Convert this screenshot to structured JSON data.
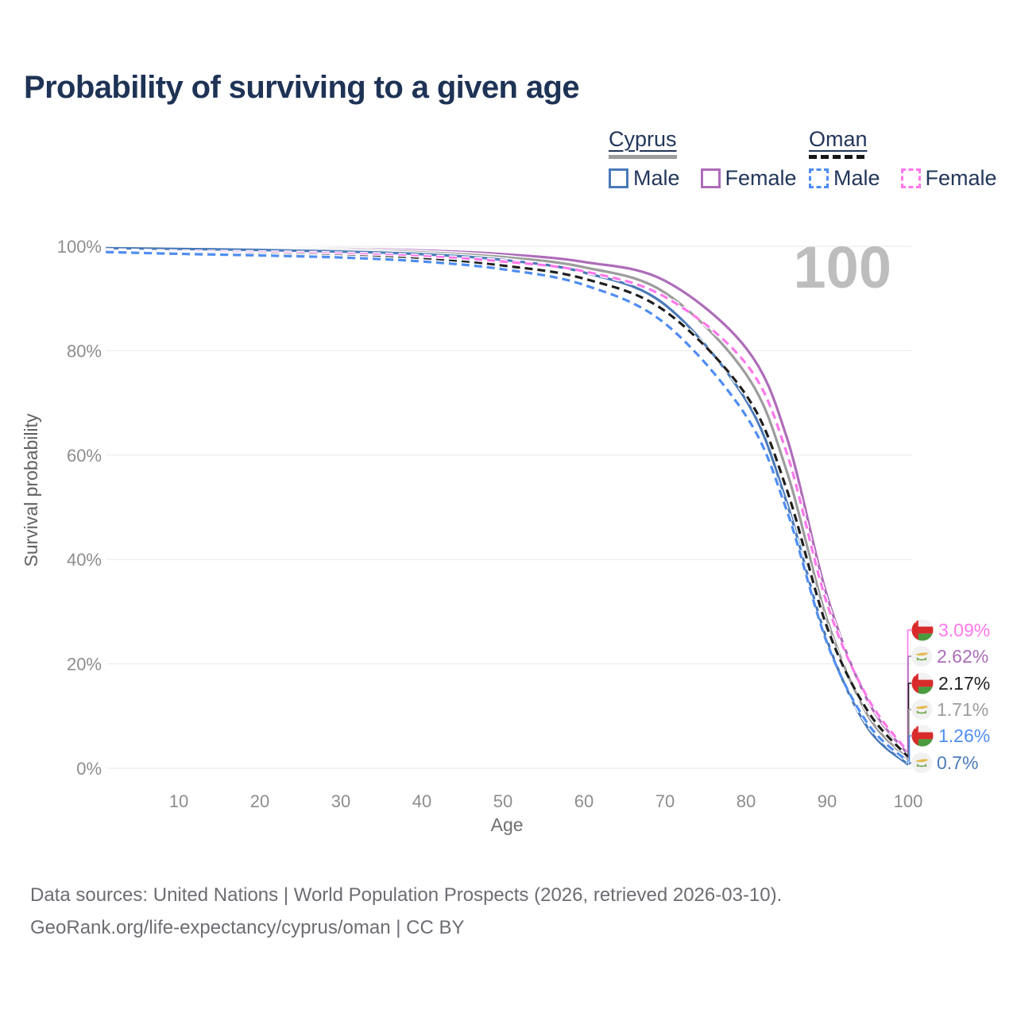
{
  "title": "Probability of surviving to a given age",
  "watermark": "100",
  "legend": {
    "groups": [
      {
        "name": "Cyprus",
        "line_style": "solid",
        "line_color": "#9c9c9c",
        "line_width": 86,
        "items": [
          {
            "label": "Male",
            "color": "#4a7ab8",
            "dash": false
          },
          {
            "label": "Female",
            "color": "#ad6cb8",
            "dash": false
          }
        ]
      },
      {
        "name": "Oman",
        "line_style": "dashed",
        "line_color": "#161616",
        "line_width": 70,
        "items": [
          {
            "label": "Male",
            "color": "#4f8df2",
            "dash": true
          },
          {
            "label": "Female",
            "color": "#ff77ec",
            "dash": true
          }
        ]
      }
    ]
  },
  "chart_data": {
    "type": "line",
    "title": "Probability of surviving to a given age",
    "xlabel": "Age",
    "ylabel": "Survival probability",
    "xlim": [
      1,
      100
    ],
    "ylim": [
      0,
      100
    ],
    "grid": "horizontal",
    "x_ticks": [
      10,
      20,
      30,
      40,
      50,
      60,
      70,
      80,
      90,
      100
    ],
    "y_ticks": [
      {
        "value": 0,
        "label": "0%"
      },
      {
        "value": 20,
        "label": "20%"
      },
      {
        "value": 40,
        "label": "40%"
      },
      {
        "value": 60,
        "label": "60%"
      },
      {
        "value": 80,
        "label": "80%"
      },
      {
        "value": 100,
        "label": "100%"
      }
    ],
    "ages": [
      1,
      10,
      20,
      30,
      40,
      50,
      60,
      70,
      80,
      85,
      90,
      95,
      100
    ],
    "series": [
      {
        "name": "Oman Female",
        "country": "Oman",
        "flag": "oman",
        "color": "#ff77ec",
        "dash": true,
        "end_label": "3.09%",
        "values": [
          99.2,
          98.95,
          98.8,
          98.55,
          98.1,
          97.1,
          95.2,
          90.3,
          77.5,
          60.5,
          31.5,
          13.5,
          3.09
        ]
      },
      {
        "name": "Cyprus Female",
        "country": "Cyprus",
        "flag": "cyprus",
        "color": "#ad6cb8",
        "dash": false,
        "end_label": "2.62%",
        "values": [
          99.8,
          99.7,
          99.6,
          99.5,
          99.2,
          98.5,
          97.0,
          93.4,
          80.5,
          63.5,
          33.0,
          13.0,
          2.62
        ]
      },
      {
        "name": "Oman Both Sexes",
        "country": "Oman",
        "flag": "oman",
        "color": "#1f1f1f",
        "dash": true,
        "end_label": "2.17%",
        "values": [
          99.05,
          98.7,
          98.5,
          98.15,
          97.55,
          96.3,
          93.8,
          87.6,
          71.5,
          53.5,
          27.0,
          11.0,
          2.17
        ]
      },
      {
        "name": "Cyprus Both Sexes",
        "country": "Cyprus",
        "flag": "cyprus",
        "color": "#9c9c9c",
        "dash": false,
        "end_label": "1.71%",
        "values": [
          99.7,
          99.6,
          99.45,
          99.25,
          98.85,
          97.95,
          96.0,
          91.1,
          75.5,
          57.0,
          28.5,
          10.2,
          1.71
        ]
      },
      {
        "name": "Oman Male",
        "country": "Oman",
        "flag": "oman",
        "color": "#4f8df2",
        "dash": true,
        "end_label": "1.26%",
        "values": [
          98.9,
          98.55,
          98.25,
          97.85,
          97.1,
          95.6,
          92.6,
          85.2,
          67.5,
          49.5,
          24.0,
          8.6,
          1.26
        ]
      },
      {
        "name": "Cyprus Male",
        "country": "Cyprus",
        "flag": "cyprus",
        "color": "#4a7ab8",
        "dash": false,
        "end_label": "0.7%",
        "values": [
          99.65,
          99.5,
          99.3,
          99.0,
          98.5,
          97.4,
          95.0,
          88.8,
          70.5,
          51.0,
          24.5,
          7.8,
          0.7
        ]
      }
    ]
  },
  "footer": {
    "line1": "Data sources: United Nations | World Population Prospects (2026, retrieved 2026-03-10).",
    "line2": "GeoRank.org/life-expectancy/cyprus/oman | CC BY"
  }
}
